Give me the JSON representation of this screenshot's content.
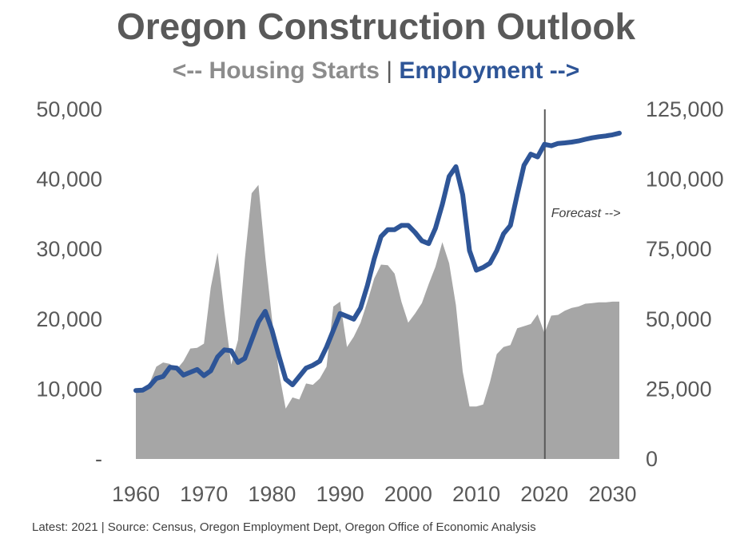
{
  "title": "Oregon Construction Outlook",
  "subtitle": {
    "left": "<-- Housing Starts",
    "separator": "|",
    "right": "Employment -->"
  },
  "footnote": "Latest: 2021 | Source: Census, Oregon Employment Dept, Oregon Office of Economic Analysis",
  "colors": {
    "housing": "#a6a6a6",
    "employment": "#2e5597",
    "text": "#595959",
    "forecast_line": "#595959"
  },
  "chart_data": {
    "type": "area",
    "x_range": [
      1960,
      2031
    ],
    "x_ticks": [
      1960,
      1970,
      1980,
      1990,
      2000,
      2010,
      2020,
      2030
    ],
    "x_tick_labels": [
      "1960",
      "1970",
      "1980",
      "1990",
      "2000",
      "2010",
      "2020",
      "2030"
    ],
    "y_left": {
      "range": [
        0,
        50000
      ],
      "ticks": [
        0,
        10000,
        20000,
        30000,
        40000,
        50000
      ],
      "tick_labels": [
        "-",
        "10,000",
        "20,000",
        "30,000",
        "40,000",
        "50,000"
      ]
    },
    "y_right": {
      "range": [
        0,
        125000
      ],
      "ticks": [
        0,
        25000,
        50000,
        75000,
        100000,
        125000
      ],
      "tick_labels": [
        "0",
        "25,000",
        "50,000",
        "75,000",
        "100,000",
        "125,000"
      ]
    },
    "forecast_start": 2020,
    "forecast_label": "Forecast -->",
    "series": [
      {
        "name": "Housing Starts",
        "type": "area",
        "axis": "left",
        "x": [
          1960,
          1961,
          1962,
          1963,
          1964,
          1965,
          1966,
          1967,
          1968,
          1969,
          1970,
          1971,
          1972,
          1973,
          1974,
          1975,
          1976,
          1977,
          1978,
          1979,
          1980,
          1981,
          1982,
          1983,
          1984,
          1985,
          1986,
          1987,
          1988,
          1989,
          1990,
          1991,
          1992,
          1993,
          1994,
          1995,
          1996,
          1997,
          1998,
          1999,
          2000,
          2001,
          2002,
          2003,
          2004,
          2005,
          2006,
          2007,
          2008,
          2009,
          2010,
          2011,
          2012,
          2013,
          2014,
          2015,
          2016,
          2017,
          2018,
          2019,
          2020,
          2021,
          2022,
          2023,
          2024,
          2025,
          2026,
          2027,
          2028,
          2029,
          2030,
          2031
        ],
        "values": [
          10000,
          9800,
          10800,
          13200,
          13800,
          13600,
          12800,
          14000,
          15800,
          15900,
          16500,
          24500,
          29500,
          21000,
          13500,
          17000,
          28500,
          38000,
          39200,
          29000,
          20000,
          12500,
          7200,
          8800,
          8500,
          10800,
          10600,
          11500,
          13200,
          21800,
          22500,
          16000,
          17500,
          19500,
          22500,
          25800,
          27800,
          27700,
          26500,
          22500,
          19500,
          20800,
          22300,
          25000,
          27500,
          31000,
          28000,
          22000,
          12500,
          7500,
          7500,
          7800,
          11000,
          15000,
          16000,
          16300,
          18700,
          19000,
          19300,
          20700,
          18000,
          20500,
          20600,
          21200,
          21600,
          21800,
          22200,
          22300,
          22400,
          22400,
          22500,
          22500
        ]
      },
      {
        "name": "Employment",
        "type": "line",
        "axis": "right",
        "x": [
          1960,
          1961,
          1962,
          1963,
          1964,
          1965,
          1966,
          1967,
          1968,
          1969,
          1970,
          1971,
          1972,
          1973,
          1974,
          1975,
          1976,
          1977,
          1978,
          1979,
          1980,
          1981,
          1982,
          1983,
          1984,
          1985,
          1986,
          1987,
          1988,
          1989,
          1990,
          1991,
          1992,
          1993,
          1994,
          1995,
          1996,
          1997,
          1998,
          1999,
          2000,
          2001,
          2002,
          2003,
          2004,
          2005,
          2006,
          2007,
          2008,
          2009,
          2010,
          2011,
          2012,
          2013,
          2014,
          2015,
          2016,
          2017,
          2018,
          2019,
          2020,
          2021,
          2022,
          2023,
          2024,
          2025,
          2026,
          2027,
          2028,
          2029,
          2030,
          2031
        ],
        "values": [
          24500,
          24600,
          26000,
          28800,
          29500,
          32800,
          32500,
          30000,
          31000,
          32000,
          29800,
          31500,
          36500,
          39000,
          38700,
          34500,
          36000,
          42500,
          49000,
          52800,
          46000,
          37000,
          28500,
          26500,
          29500,
          32500,
          33500,
          35000,
          40000,
          46000,
          52000,
          51000,
          50000,
          54000,
          62000,
          71500,
          79500,
          82000,
          82000,
          83500,
          83500,
          81000,
          78000,
          77000,
          82500,
          91000,
          101000,
          104500,
          94500,
          74500,
          67500,
          68500,
          70000,
          74500,
          80500,
          83500,
          94500,
          105000,
          109000,
          108000,
          112500,
          112000,
          112800,
          113000,
          113300,
          113700,
          114300,
          114800,
          115200,
          115500,
          115900,
          116500
        ]
      }
    ]
  }
}
